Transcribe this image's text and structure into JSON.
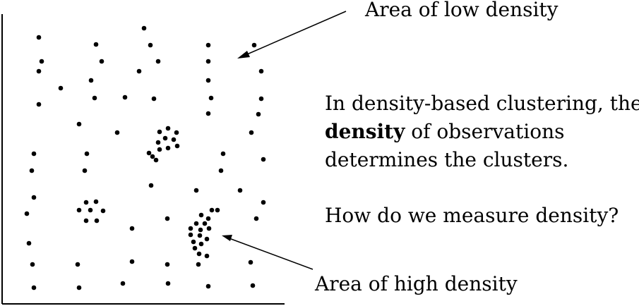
{
  "labels": {
    "low_density": "Area of low density",
    "high_density": "Area of high density"
  },
  "description": {
    "line1": "In density-based clustering, the",
    "line2_bold": "density",
    "line2_rest": " of observations",
    "line3": "determines the clusters."
  },
  "question": "How do we measure density?",
  "colors": {
    "ink": "#000000",
    "background": "#ffffff"
  }
}
